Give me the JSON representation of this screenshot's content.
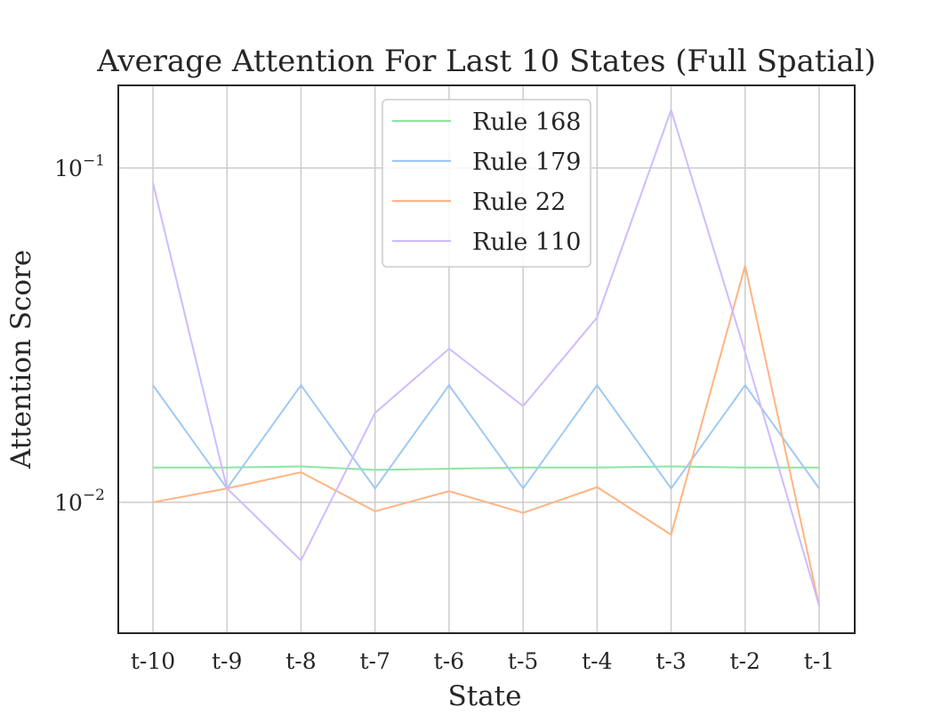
{
  "chart_data": {
    "type": "line",
    "title": "Average Attention For Last 10 States (Full Spatial)",
    "xlabel": "State",
    "ylabel": "Attention Score",
    "yscale": "log",
    "ylim": [
      0.00406,
      0.1766
    ],
    "yticks": [
      {
        "value": 0.1,
        "base": "10",
        "exp": "−1"
      },
      {
        "value": 0.01,
        "base": "10",
        "exp": "−2"
      }
    ],
    "grid": true,
    "legend_position": "top-center",
    "categories": [
      "t-10",
      "t-9",
      "t-8",
      "t-7",
      "t-6",
      "t-5",
      "t-4",
      "t-3",
      "t-2",
      "t-1"
    ],
    "series": [
      {
        "name": "Rule 168",
        "color": "#8de5a1",
        "values": [
          0.0127,
          0.0127,
          0.0128,
          0.0125,
          0.0126,
          0.0127,
          0.0127,
          0.0128,
          0.0127,
          0.0127
        ]
      },
      {
        "name": "Rule 179",
        "color": "#a1c9f4",
        "values": [
          0.0224,
          0.011,
          0.0224,
          0.011,
          0.0224,
          0.011,
          0.0224,
          0.011,
          0.0224,
          0.011
        ]
      },
      {
        "name": "Rule 22",
        "color": "#ffb482",
        "values": [
          0.01,
          0.011,
          0.0123,
          0.0094,
          0.0108,
          0.0093,
          0.0111,
          0.008,
          0.051,
          0.0049
        ]
      },
      {
        "name": "Rule 110",
        "color": "#d0bbff",
        "values": [
          0.0901,
          0.011,
          0.0067,
          0.0185,
          0.0288,
          0.0194,
          0.0357,
          0.149,
          0.0281,
          0.0049
        ]
      }
    ]
  }
}
